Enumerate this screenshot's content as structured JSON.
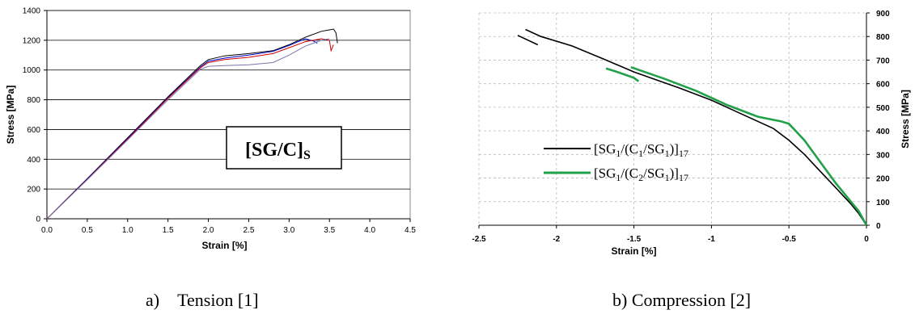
{
  "captions": {
    "a": "a)    Tension [1]",
    "b": "b) Compression [2]"
  },
  "chart_data": [
    {
      "type": "line",
      "xlabel": "Strain [%]",
      "ylabel": "Stress [MPa]",
      "xlim": [
        0,
        4.5
      ],
      "ylim": [
        0,
        1400
      ],
      "xticks": [
        "0.0",
        "0.5",
        "1.0",
        "1.5",
        "2.0",
        "2.5",
        "3.0",
        "3.5",
        "4.0",
        "4.5"
      ],
      "yticks": [
        "0",
        "200",
        "400",
        "600",
        "800",
        "1000",
        "1200",
        "1400"
      ],
      "grid": "horizontal",
      "box_label": {
        "main": "[SG/C]",
        "sub": "S"
      },
      "series": [
        {
          "color": "#000000",
          "x": [
            0,
            0.5,
            1.0,
            1.5,
            1.9,
            2.0,
            2.2,
            2.5,
            2.8,
            3.0,
            3.2,
            3.4,
            3.5,
            3.55,
            3.58,
            3.6
          ],
          "y": [
            0,
            270,
            545,
            820,
            1030,
            1070,
            1095,
            1110,
            1130,
            1170,
            1220,
            1260,
            1270,
            1275,
            1250,
            1180
          ]
        },
        {
          "color": "#0000cc",
          "x": [
            0,
            0.5,
            1.0,
            1.5,
            1.9,
            2.0,
            2.2,
            2.5,
            2.8,
            3.0,
            3.2,
            3.3,
            3.35
          ],
          "y": [
            0,
            268,
            540,
            815,
            1020,
            1060,
            1080,
            1100,
            1125,
            1165,
            1210,
            1195,
            1180
          ]
        },
        {
          "color": "#cc0000",
          "x": [
            0,
            0.5,
            1.0,
            1.5,
            1.9,
            2.0,
            2.2,
            2.5,
            2.8,
            3.0,
            3.2,
            3.4,
            3.5,
            3.52,
            3.55
          ],
          "y": [
            0,
            265,
            535,
            810,
            1015,
            1050,
            1070,
            1085,
            1110,
            1150,
            1190,
            1210,
            1200,
            1130,
            1170
          ]
        },
        {
          "color": "#7777aa",
          "x": [
            0,
            0.5,
            1.0,
            1.5,
            1.9,
            2.0,
            2.2,
            2.5,
            2.8,
            3.0,
            3.2,
            3.4,
            3.5
          ],
          "y": [
            0,
            262,
            530,
            800,
            1005,
            1025,
            1030,
            1035,
            1050,
            1100,
            1160,
            1200,
            1210
          ]
        }
      ]
    },
    {
      "type": "line",
      "xlabel": "Strain [%]",
      "ylabel": "Stress [MPa]",
      "xlim": [
        -2.5,
        0
      ],
      "ylim": [
        0,
        900
      ],
      "xticks": [
        "-2.5",
        "-2",
        "-1.5",
        "-1",
        "-0.5",
        "0"
      ],
      "yticks": [
        "0",
        "100",
        "200",
        "300",
        "400",
        "500",
        "600",
        "700",
        "800",
        "900"
      ],
      "grid": "dashed",
      "legend": "left-middle",
      "series": [
        {
          "name_main": "[SG",
          "name_sub1": "1",
          "name_mid": "/(C",
          "name_sub2": "1",
          "name_mid2": "/SG",
          "name_sub3": "1",
          "name_end": ")]",
          "name_sub4": "17",
          "color": "#000000",
          "segments": [
            {
              "x": [
                -2.25,
                -2.12
              ],
              "y": [
                805,
                765
              ]
            },
            {
              "x": [
                -2.2,
                -2.1,
                -1.9,
                -1.68
              ],
              "y": [
                830,
                800,
                760,
                700
              ]
            },
            {
              "x": [
                -1.68,
                -1.5,
                -1.2,
                -1.0,
                -0.8,
                -0.6,
                -0.5,
                -0.4,
                -0.3,
                -0.2,
                -0.1,
                -0.05,
                0
              ],
              "y": [
                700,
                650,
                580,
                530,
                470,
                410,
                360,
                300,
                230,
                160,
                90,
                50,
                0
              ]
            }
          ]
        },
        {
          "name_main": "[SG",
          "name_sub1": "1",
          "name_mid": "/(C",
          "name_sub2": "2",
          "name_mid2": "/SG",
          "name_sub3": "1",
          "name_end": ")]",
          "name_sub4": "17",
          "color": "#22a04a",
          "segments": [
            {
              "x": [
                -1.68,
                -1.6,
                -1.5,
                -1.47
              ],
              "y": [
                665,
                648,
                625,
                610
              ]
            },
            {
              "x": [
                -1.52,
                -1.3,
                -1.1,
                -0.9,
                -0.7,
                -0.55,
                -0.5,
                -0.4,
                -0.3,
                -0.2,
                -0.1,
                -0.05,
                0
              ],
              "y": [
                670,
                620,
                570,
                510,
                460,
                440,
                430,
                360,
                270,
                180,
                100,
                60,
                0
              ]
            }
          ]
        }
      ]
    }
  ]
}
